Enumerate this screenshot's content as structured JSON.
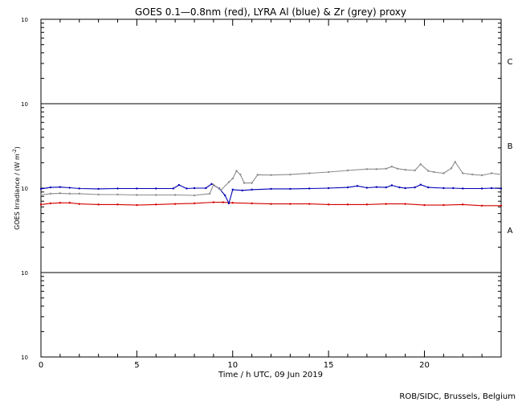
{
  "chart_data": {
    "type": "line",
    "title": "GOES 0.1—0.8nm (red), LYRA Al (blue) & Zr (grey) proxy",
    "xlabel": "Time / h UTC, 09 Jun 2019",
    "ylabel_text": "GOES Irradiance / (W m",
    "ylabel_sup": "-2",
    "ylabel_close": ")",
    "xlim": [
      0,
      24
    ],
    "ylim": [
      1e-09,
      1e-05
    ],
    "yscale": "log",
    "grid": false,
    "x_ticks": [
      {
        "value": 0,
        "label": "0"
      },
      {
        "value": 5,
        "label": "5"
      },
      {
        "value": 10,
        "label": "10"
      },
      {
        "value": 15,
        "label": "15"
      },
      {
        "value": 20,
        "label": "20"
      }
    ],
    "y_ticks": [
      {
        "value": 1e-09,
        "base": "10",
        "exp": "-9"
      },
      {
        "value": 1e-08,
        "base": "10",
        "exp": "-8"
      },
      {
        "value": 1e-07,
        "base": "10",
        "exp": "-7"
      },
      {
        "value": 1e-06,
        "base": "10",
        "exp": "-6"
      },
      {
        "value": 1e-05,
        "base": "10",
        "exp": "-5"
      }
    ],
    "flare_lines": [
      1e-08,
      1e-06
    ],
    "flare_classes": [
      {
        "label": "A",
        "value": 3.2e-08
      },
      {
        "label": "B",
        "value": 3.2e-07
      },
      {
        "label": "C",
        "value": 3.2e-06
      }
    ],
    "series": [
      {
        "color": "#d40000",
        "x": [
          0,
          0.5,
          1,
          1.5,
          2,
          3,
          4,
          5,
          6,
          7,
          8,
          9,
          9.5,
          10,
          11,
          12,
          13,
          14,
          15,
          16,
          17,
          18,
          19,
          20,
          21,
          22,
          23,
          24
        ],
        "values": [
          6.4e-08,
          6.6e-08,
          6.7e-08,
          6.7e-08,
          6.5e-08,
          6.4e-08,
          6.4e-08,
          6.3e-08,
          6.4e-08,
          6.5e-08,
          6.6e-08,
          6.8e-08,
          6.8e-08,
          6.7e-08,
          6.6e-08,
          6.5e-08,
          6.5e-08,
          6.5e-08,
          6.4e-08,
          6.4e-08,
          6.4e-08,
          6.5e-08,
          6.5e-08,
          6.3e-08,
          6.3e-08,
          6.4e-08,
          6.2e-08,
          6.2e-08
        ]
      },
      {
        "color": "#0000b4",
        "x": [
          0,
          0.5,
          1,
          1.5,
          2,
          3,
          4,
          5,
          6,
          6.9,
          7.2,
          7.6,
          8,
          8.6,
          8.9,
          9.3,
          9.6,
          9.8,
          10,
          10.5,
          11,
          12,
          13,
          14,
          15,
          16,
          16.5,
          17,
          17.5,
          18,
          18.3,
          18.7,
          19,
          19.5,
          19.8,
          20.2,
          21,
          21.5,
          22,
          23,
          23.5,
          24
        ],
        "values": [
          9.8e-08,
          1.02e-07,
          1.03e-07,
          1.01e-07,
          9.9e-08,
          9.8e-08,
          9.9e-08,
          9.9e-08,
          9.9e-08,
          9.9e-08,
          1.09e-07,
          9.9e-08,
          1e-07,
          1e-07,
          1.12e-07,
          9.9e-08,
          8.2e-08,
          6.6e-08,
          9.6e-08,
          9.4e-08,
          9.6e-08,
          9.8e-08,
          9.8e-08,
          9.9e-08,
          1e-07,
          1.02e-07,
          1.06e-07,
          1.01e-07,
          1.03e-07,
          1.02e-07,
          1.08e-07,
          1.02e-07,
          1e-07,
          1.02e-07,
          1.1e-07,
          1.02e-07,
          1e-07,
          1e-07,
          9.9e-08,
          9.9e-08,
          1e-07,
          9.9e-08
        ]
      },
      {
        "color": "#8c8c8c",
        "x": [
          0,
          0.5,
          1,
          1.5,
          2,
          3,
          4,
          5,
          6,
          7,
          8,
          8.8,
          9,
          9.4,
          9.8,
          10,
          10.2,
          10.4,
          10.6,
          11,
          11.3,
          12,
          13,
          14,
          15,
          16,
          17,
          17.5,
          18,
          18.3,
          18.6,
          19,
          19.5,
          19.8,
          20.2,
          20.5,
          21,
          21.4,
          21.6,
          22,
          22.5,
          23,
          23.5,
          24
        ],
        "values": [
          8.3e-08,
          8.6e-08,
          8.7e-08,
          8.6e-08,
          8.6e-08,
          8.4e-08,
          8.4e-08,
          8.3e-08,
          8.3e-08,
          8.3e-08,
          8.2e-08,
          8.6e-08,
          1.1e-07,
          9.5e-08,
          1.18e-07,
          1.3e-07,
          1.6e-07,
          1.45e-07,
          1.15e-07,
          1.15e-07,
          1.44e-07,
          1.43e-07,
          1.45e-07,
          1.5e-07,
          1.55e-07,
          1.62e-07,
          1.68e-07,
          1.68e-07,
          1.7e-07,
          1.8e-07,
          1.7e-07,
          1.65e-07,
          1.62e-07,
          1.92e-07,
          1.6e-07,
          1.55e-07,
          1.5e-07,
          1.72e-07,
          2.05e-07,
          1.5e-07,
          1.45e-07,
          1.42e-07,
          1.5e-07,
          1.45e-07
        ]
      }
    ]
  },
  "credit": "ROB/SIDC, Brussels, Belgium"
}
